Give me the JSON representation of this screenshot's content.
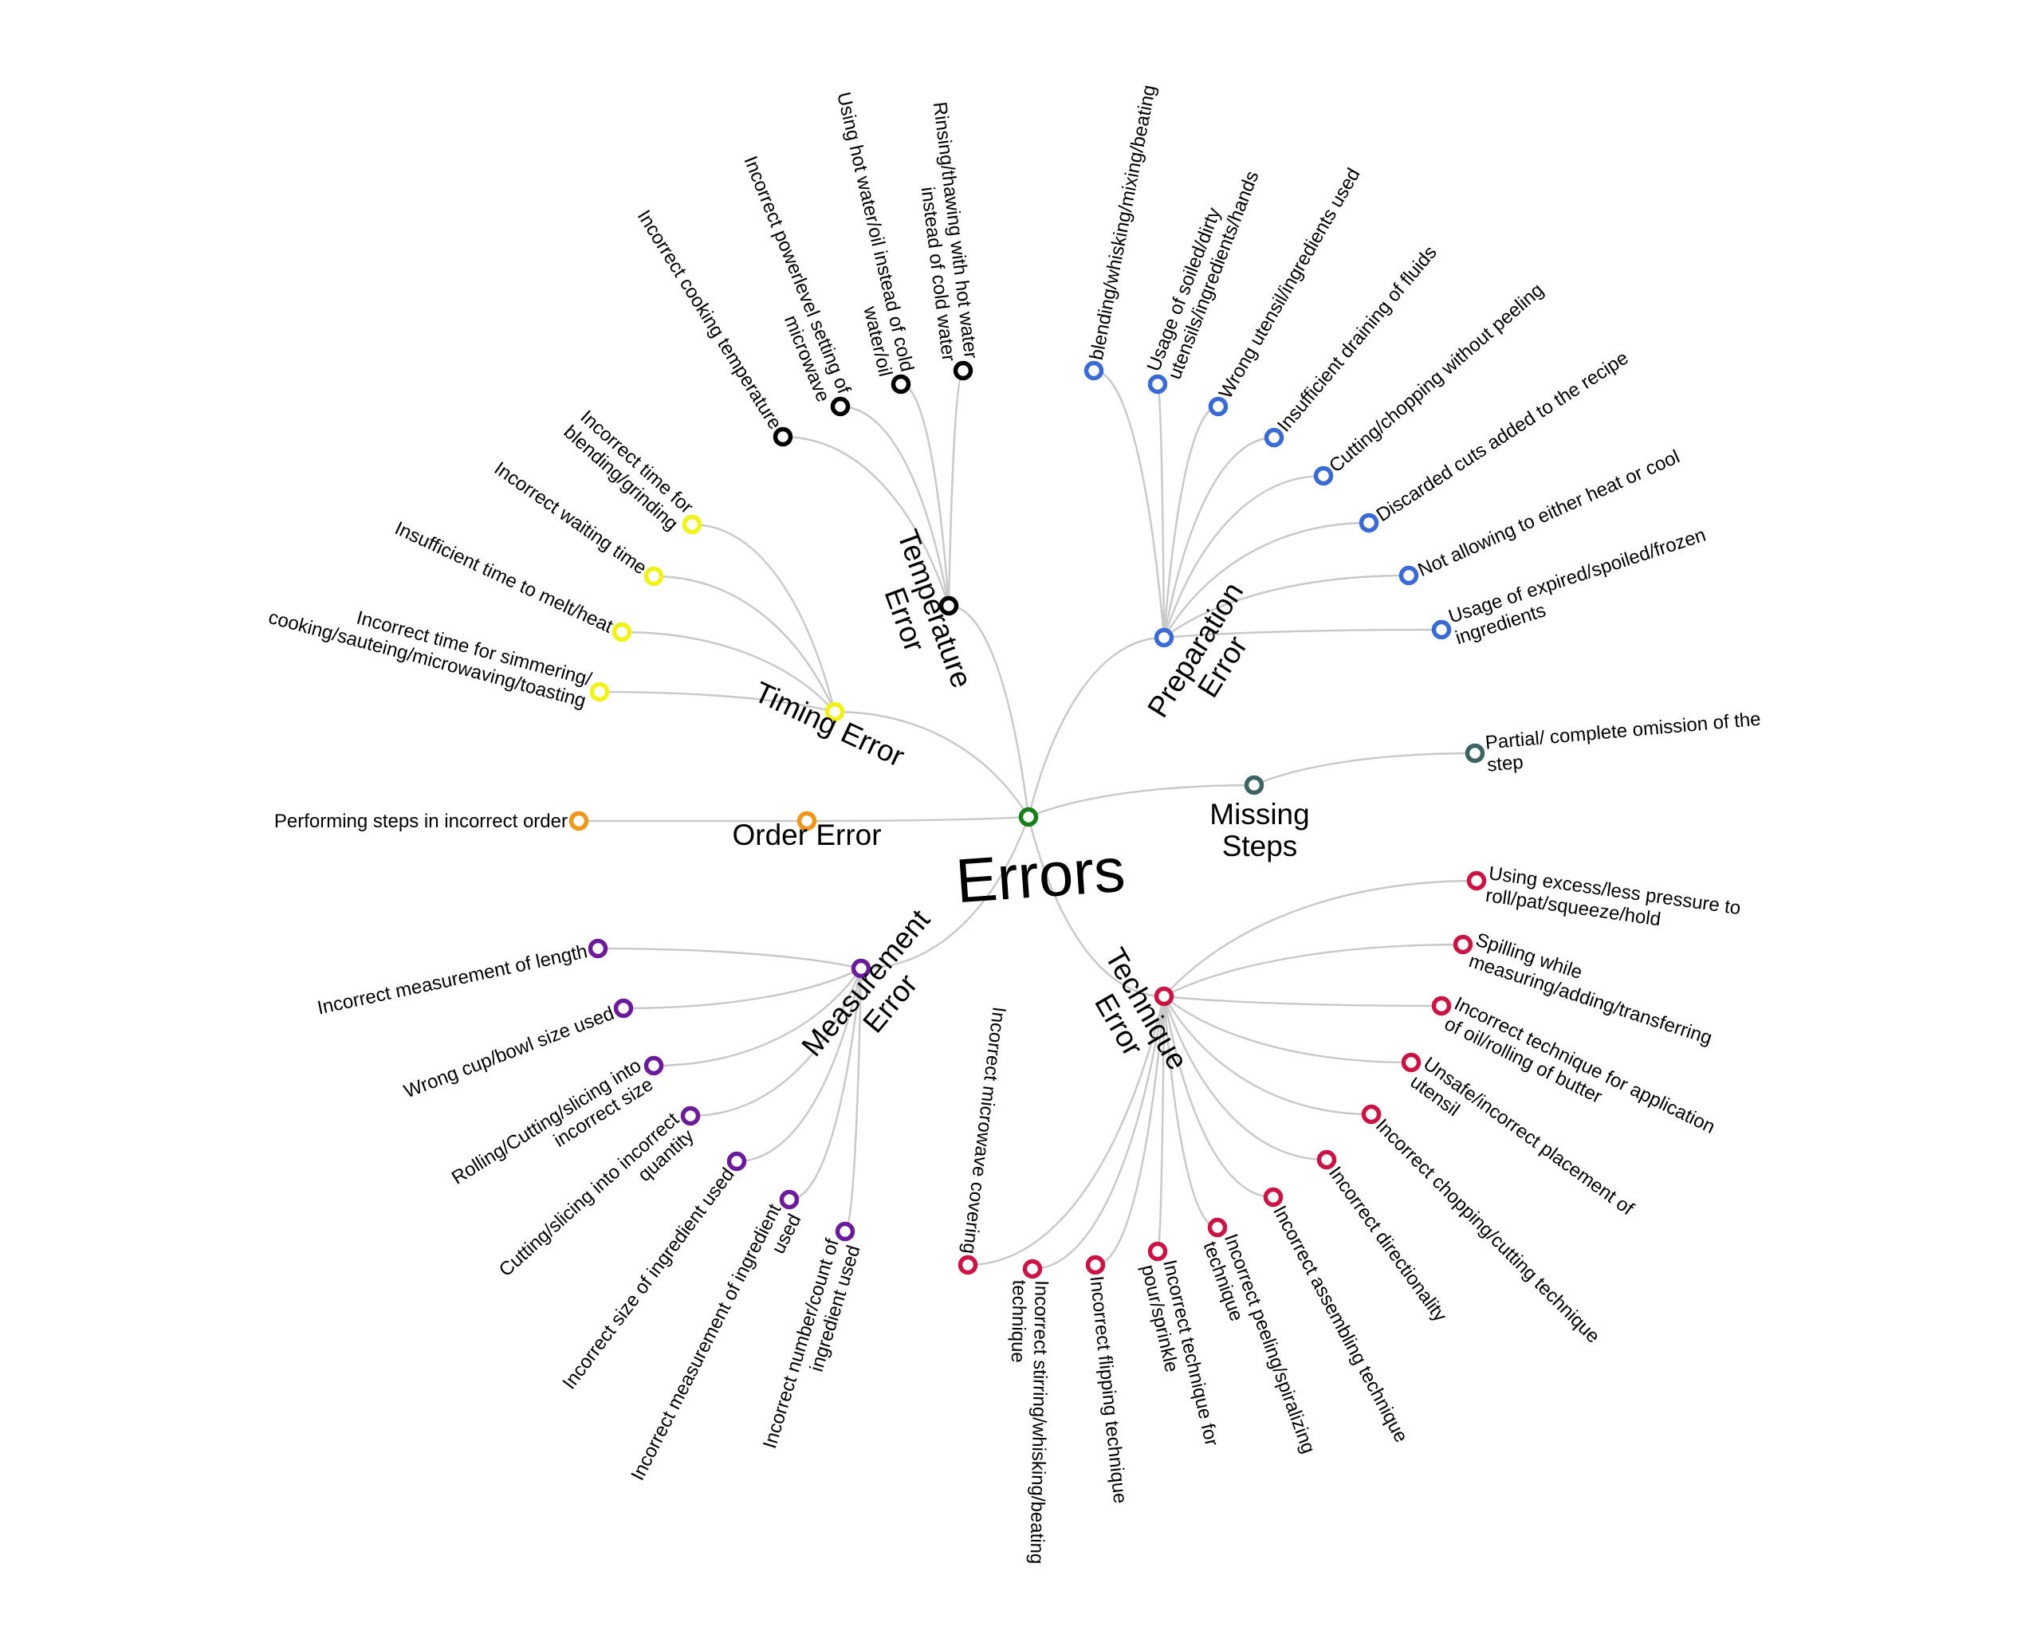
{
  "root": {
    "label": "Errors",
    "color": "#1a7f1a"
  },
  "categories": [
    {
      "id": "temperature",
      "lines": [
        "Temperature",
        "Error"
      ],
      "color": "#000000",
      "items": [
        {
          "lines": [
            "Incorrect cooking temperature"
          ]
        },
        {
          "lines": [
            "Incorrect powerlevel setting of",
            "microwave"
          ]
        },
        {
          "lines": [
            "Using hot water/oil instead of cold",
            "water/oil"
          ]
        },
        {
          "lines": [
            "Rinsing/thawing with hot water",
            "instead of cold water"
          ]
        }
      ]
    },
    {
      "id": "preparation",
      "lines": [
        "Preparation",
        "Error"
      ],
      "color": "#3a6ad6",
      "items": [
        {
          "lines": [
            "blending/whisking/mixing/beating"
          ]
        },
        {
          "lines": [
            "Usage of soiled/dirty",
            "utensils/ingredients/hands"
          ]
        },
        {
          "lines": [
            "Wrong utensil/ingredients used"
          ]
        },
        {
          "lines": [
            "Insufficient draining of fluids"
          ]
        },
        {
          "lines": [
            "Cutting/chopping without peeling"
          ]
        },
        {
          "lines": [
            "Discarded cuts added to the recipe"
          ]
        },
        {
          "lines": [
            "Not allowing to either heat or cool"
          ]
        },
        {
          "lines": [
            "Usage of expired/spoiled/frozen",
            "ingredients"
          ]
        }
      ]
    },
    {
      "id": "missing",
      "lines": [
        "Missing",
        "Steps"
      ],
      "color": "#3d6462",
      "items": [
        {
          "lines": [
            "Partial/ complete omission of the",
            "step"
          ]
        }
      ]
    },
    {
      "id": "technique",
      "lines": [
        "Technique",
        "Error"
      ],
      "color": "#cc1444",
      "items": [
        {
          "lines": [
            "Using excess/less pressure to",
            "roll/pat/squeeze/hold"
          ]
        },
        {
          "lines": [
            "Spilling while",
            "measuring/adding/transferring"
          ]
        },
        {
          "lines": [
            "Incorrect technique for application",
            "of oil/rolling of butter"
          ]
        },
        {
          "lines": [
            "Unsafe/incorrect placement of",
            "utensil"
          ]
        },
        {
          "lines": [
            "Incorrect chopping/cutting technique"
          ]
        },
        {
          "lines": [
            "Incorrect directionality"
          ]
        },
        {
          "lines": [
            "Incorrect assembling technique"
          ]
        },
        {
          "lines": [
            "Incorrect peeling/spiralizing",
            "technique"
          ]
        },
        {
          "lines": [
            "Incorrect technique for",
            "pour/sprinkle"
          ]
        },
        {
          "lines": [
            "Incorrect flipping technique"
          ]
        },
        {
          "lines": [
            "Incorrect stirring/whisking/beating",
            "technique"
          ]
        },
        {
          "lines": [
            "Incorrect microwave covering"
          ]
        }
      ]
    },
    {
      "id": "measurement",
      "lines": [
        "Measurement",
        "Error"
      ],
      "color": "#6a1a9a",
      "items": [
        {
          "lines": [
            "Incorrect number/count of",
            "ingredient used"
          ]
        },
        {
          "lines": [
            "Incorrect measurement of ingredient",
            "used"
          ]
        },
        {
          "lines": [
            "Incorrect size of ingredient used"
          ]
        },
        {
          "lines": [
            "Cutting/slicing into incorrect",
            "quantity"
          ]
        },
        {
          "lines": [
            "Rolling/Cutting/slicing into",
            "incorrect size"
          ]
        },
        {
          "lines": [
            "Wrong cup/bowl size used"
          ]
        },
        {
          "lines": [
            "Incorrect measurement of length"
          ]
        }
      ]
    },
    {
      "id": "order",
      "lines": [
        "Order Error"
      ],
      "color": "#f0961a",
      "items": [
        {
          "lines": [
            "Performing steps in incorrect order"
          ]
        }
      ]
    },
    {
      "id": "timing",
      "lines": [
        "Timing Error"
      ],
      "color": "#f2f215",
      "items": [
        {
          "lines": [
            "Incorrect time for simmering/",
            "cooking/sauteing/microwaving/toasting"
          ]
        },
        {
          "lines": [
            "Insufficient time to melt/heat"
          ]
        },
        {
          "lines": [
            "Incorrect waiting time"
          ]
        },
        {
          "lines": [
            "Incorrect time for",
            "blending/grinding"
          ]
        }
      ]
    }
  ]
}
